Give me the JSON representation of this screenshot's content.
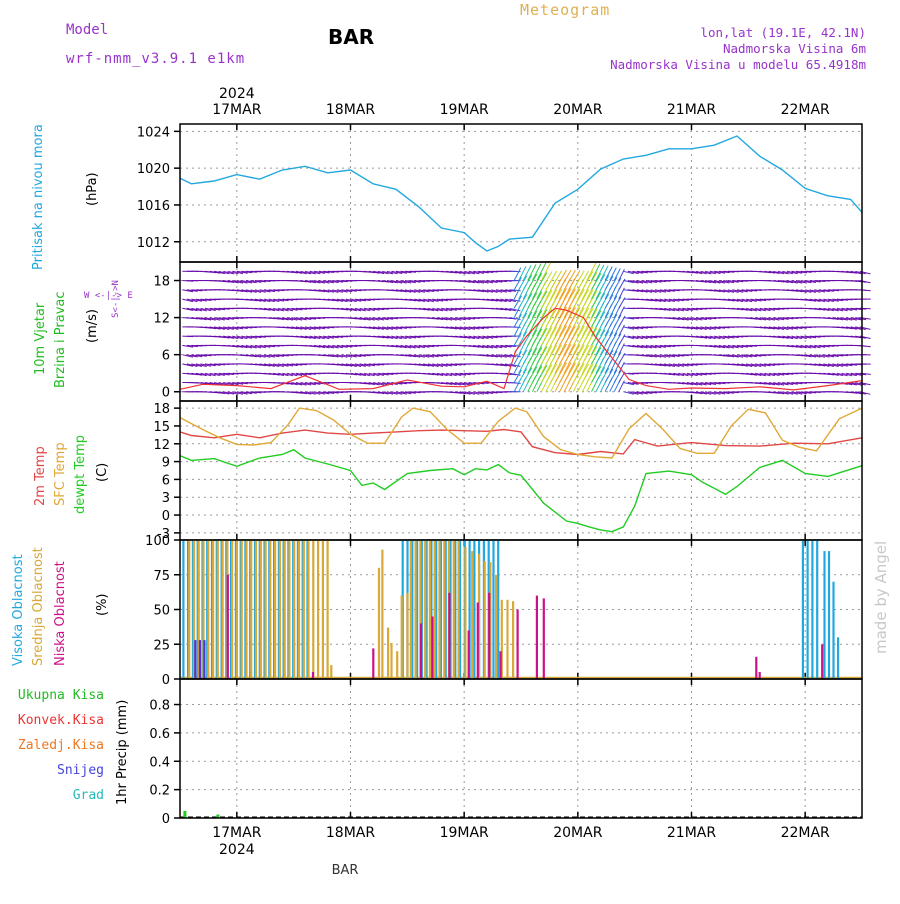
{
  "header": {
    "meteogram_title": "Meteogram",
    "model_label": "Model",
    "model_name": "wrf-nmm_v3.9.1 e1km",
    "station": "BAR",
    "location": "lon,lat (19.1E, 42.1N)",
    "elevation": "Nadmorska Visina 6m",
    "model_elevation": "Nadmorska Visina u modelu 65.4918m",
    "footer_station": "BAR",
    "watermark": "made by Angel"
  },
  "colors": {
    "pressure": "#22a8e0",
    "temp2m": "#e04848",
    "sfc_temp": "#e0a838",
    "dewpt": "#22cc22",
    "wind_label": "#22bb22",
    "high_cloud": "#22a8e0",
    "mid_cloud": "#d8a838",
    "low_cloud": "#cc1188",
    "purple": "#9933cc",
    "snow": "#4444dd",
    "hail": "#22bbbb",
    "conv": "#ee3333",
    "frz": "#ee7722"
  },
  "chart_data": [
    {
      "type": "line",
      "id": "pressure",
      "ylabel": "(hPa)",
      "side_label": "Pritisak na nivou mora",
      "yticks": [
        1012,
        1016,
        1020,
        1024
      ],
      "ylim": [
        1009.8,
        1024.8
      ],
      "day_labels": [
        "17MAR",
        "18MAR",
        "19MAR",
        "20MAR",
        "21MAR",
        "22MAR"
      ],
      "year_label": "2024",
      "x_days": [
        16.5,
        16.6,
        16.8,
        17.0,
        17.2,
        17.4,
        17.6,
        17.8,
        18.0,
        18.2,
        18.4,
        18.6,
        18.8,
        19.0,
        19.1,
        19.2,
        19.3,
        19.4,
        19.6,
        19.8,
        20.0,
        20.2,
        20.4,
        20.6,
        20.8,
        21.0,
        21.2,
        21.4,
        21.6,
        21.8,
        22.0,
        22.2,
        22.4,
        22.5
      ],
      "values": [
        1018.9,
        1018.3,
        1018.6,
        1019.3,
        1018.8,
        1019.8,
        1020.2,
        1019.5,
        1019.8,
        1018.3,
        1017.7,
        1015.8,
        1013.5,
        1013.0,
        1011.9,
        1011.0,
        1011.5,
        1012.3,
        1012.5,
        1016.2,
        1017.7,
        1019.9,
        1021.0,
        1021.4,
        1022.1,
        1022.1,
        1022.5,
        1023.5,
        1021.3,
        1019.8,
        1017.8,
        1017.0,
        1016.6,
        1015.2
      ]
    },
    {
      "type": "line",
      "id": "wind",
      "ylabel": "(m/s)",
      "side_label": "10m Vjetar Brzina i Pravac",
      "compass_label": "W <-|-> E  S <-|-> N",
      "yticks": [
        0,
        6,
        12,
        18
      ],
      "ylim": [
        -1.5,
        21
      ],
      "x_days": [
        16.5,
        16.7,
        17.0,
        17.3,
        17.6,
        17.9,
        18.2,
        18.5,
        18.8,
        19.0,
        19.2,
        19.35,
        19.45,
        19.55,
        19.7,
        19.8,
        19.9,
        20.05,
        20.15,
        20.3,
        20.45,
        20.6,
        20.8,
        21.0,
        21.3,
        21.6,
        21.9,
        22.2,
        22.5
      ],
      "values": [
        0.4,
        1.2,
        1.0,
        0.5,
        2.6,
        0.4,
        0.5,
        1.9,
        0.9,
        0.8,
        1.7,
        0.5,
        6.5,
        9.0,
        12.0,
        13.5,
        13.2,
        12.0,
        9.0,
        5.5,
        2.0,
        1.0,
        0.4,
        0.6,
        0.5,
        0.8,
        0.3,
        1.0,
        1.8
      ]
    },
    {
      "type": "line",
      "id": "temperature",
      "ylabel": "(C)",
      "side_label_2m": "2m Temp",
      "side_label_sfc": "SFC Temp",
      "side_label_dewpt": "dewpt Temp",
      "yticks": [
        -3,
        0,
        3,
        6,
        9,
        12,
        15,
        18
      ],
      "ylim": [
        -4.2,
        19.2
      ],
      "series": [
        {
          "name": "2m Temp",
          "x_days": [
            16.5,
            16.6,
            16.8,
            17.0,
            17.2,
            17.4,
            17.6,
            17.8,
            18.0,
            18.2,
            18.4,
            18.6,
            18.8,
            19.0,
            19.2,
            19.35,
            19.5,
            19.6,
            19.8,
            20.0,
            20.2,
            20.4,
            20.5,
            20.7,
            21.0,
            21.3,
            21.6,
            21.9,
            22.2,
            22.5
          ],
          "values": [
            14.0,
            13.4,
            13.0,
            13.6,
            13.0,
            13.8,
            14.3,
            13.8,
            13.6,
            13.8,
            14.0,
            14.2,
            14.3,
            14.2,
            14.1,
            14.4,
            14.0,
            11.5,
            10.5,
            10.2,
            10.7,
            10.3,
            12.7,
            11.6,
            12.2,
            11.7,
            11.6,
            12.1,
            12.0,
            13.0
          ]
        },
        {
          "name": "SFC Temp",
          "x_days": [
            16.5,
            16.7,
            16.85,
            17.0,
            17.15,
            17.3,
            17.45,
            17.55,
            17.7,
            17.85,
            18.0,
            18.15,
            18.3,
            18.45,
            18.55,
            18.7,
            18.85,
            19.0,
            19.15,
            19.3,
            19.45,
            19.55,
            19.7,
            19.85,
            20.0,
            20.15,
            20.3,
            20.45,
            20.6,
            20.75,
            20.9,
            21.05,
            21.2,
            21.35,
            21.5,
            21.65,
            21.8,
            21.95,
            22.1,
            22.3,
            22.5
          ],
          "values": [
            16.4,
            14.4,
            13.0,
            11.9,
            11.8,
            12.2,
            15.2,
            18.0,
            17.6,
            16.0,
            13.6,
            12.1,
            12.1,
            16.5,
            18.0,
            17.4,
            14.4,
            12.1,
            12.1,
            15.8,
            18.0,
            17.4,
            13.2,
            11.0,
            10.2,
            9.8,
            9.6,
            14.5,
            17.1,
            14.4,
            11.2,
            10.4,
            10.4,
            15.0,
            17.8,
            17.2,
            12.6,
            11.4,
            10.8,
            16.2,
            18.0
          ]
        },
        {
          "name": "dewpt Temp",
          "x_days": [
            16.5,
            16.6,
            16.8,
            17.0,
            17.2,
            17.4,
            17.5,
            17.6,
            17.8,
            18.0,
            18.1,
            18.2,
            18.3,
            18.5,
            18.7,
            18.9,
            19.0,
            19.1,
            19.2,
            19.3,
            19.4,
            19.5,
            19.7,
            19.9,
            20.0,
            20.1,
            20.2,
            20.3,
            20.4,
            20.5,
            20.6,
            20.8,
            21.0,
            21.1,
            21.2,
            21.3,
            21.4,
            21.6,
            21.8,
            22.0,
            22.2,
            22.5
          ],
          "values": [
            10.0,
            9.2,
            9.5,
            8.2,
            9.6,
            10.2,
            11.0,
            9.6,
            8.6,
            7.5,
            5.0,
            5.4,
            4.3,
            7.0,
            7.5,
            7.8,
            6.8,
            7.8,
            7.6,
            8.5,
            7.1,
            6.7,
            2.0,
            -1.0,
            -1.4,
            -2.0,
            -2.5,
            -2.8,
            -2.0,
            1.5,
            7.0,
            7.4,
            6.8,
            5.5,
            4.5,
            3.5,
            4.8,
            8.0,
            9.2,
            7.0,
            6.5,
            8.3
          ]
        }
      ]
    },
    {
      "type": "bar",
      "id": "cloud",
      "ylabel": "(%)",
      "side_label_high": "Visoka Oblacnost",
      "side_label_mid": "Srednja Oblacnost",
      "side_label_low": "Niska Oblacnost",
      "yticks": [
        0,
        25,
        50,
        75,
        100
      ],
      "ylim": [
        0,
        100
      ],
      "series": [
        {
          "name": "Visoka Oblacnost",
          "segments": [
            {
              "from": 16.52,
              "to": 17.62,
              "value": 100
            },
            {
              "from": 18.45,
              "to": 19.3,
              "value": 100
            },
            {
              "from": 21.97,
              "to": 22.12,
              "value": 100
            }
          ],
          "bars": [
            {
              "x": 22.16,
              "v": 92
            },
            {
              "x": 22.2,
              "v": 92
            },
            {
              "x": 22.24,
              "v": 70
            },
            {
              "x": 22.28,
              "v": 30
            }
          ]
        },
        {
          "name": "Srednja Oblacnost",
          "segments": [
            {
              "from": 16.55,
              "to": 17.78,
              "value": 100
            },
            {
              "from": 18.5,
              "to": 18.95,
              "value": 100
            }
          ],
          "bars": [
            {
              "x": 17.8,
              "v": 10
            },
            {
              "x": 18.22,
              "v": 80
            },
            {
              "x": 18.25,
              "v": 93
            },
            {
              "x": 18.3,
              "v": 37
            },
            {
              "x": 18.33,
              "v": 26
            },
            {
              "x": 18.38,
              "v": 20
            },
            {
              "x": 18.42,
              "v": 60
            },
            {
              "x": 18.47,
              "v": 62
            },
            {
              "x": 18.98,
              "v": 95
            },
            {
              "x": 19.04,
              "v": 92
            },
            {
              "x": 19.1,
              "v": 90
            },
            {
              "x": 19.15,
              "v": 85
            },
            {
              "x": 19.2,
              "v": 84
            },
            {
              "x": 19.25,
              "v": 75
            },
            {
              "x": 19.3,
              "v": 57
            },
            {
              "x": 19.35,
              "v": 57
            },
            {
              "x": 19.4,
              "v": 56
            }
          ]
        },
        {
          "name": "Niska Oblacnost",
          "bars": [
            {
              "x": 16.9,
              "v": 75
            },
            {
              "x": 17.65,
              "v": 5
            },
            {
              "x": 18.18,
              "v": 22
            },
            {
              "x": 18.6,
              "v": 40
            },
            {
              "x": 18.7,
              "v": 45
            },
            {
              "x": 18.85,
              "v": 62
            },
            {
              "x": 19.02,
              "v": 35
            },
            {
              "x": 19.1,
              "v": 55
            },
            {
              "x": 19.2,
              "v": 62
            },
            {
              "x": 19.3,
              "v": 20
            },
            {
              "x": 19.45,
              "v": 50
            },
            {
              "x": 19.62,
              "v": 60
            },
            {
              "x": 19.68,
              "v": 58
            },
            {
              "x": 21.55,
              "v": 16
            },
            {
              "x": 21.58,
              "v": 5
            },
            {
              "x": 22.13,
              "v": 25
            }
          ]
        }
      ]
    },
    {
      "type": "bar",
      "id": "precip",
      "ylabel": "1hr Precip (mm)",
      "yticks": [
        0,
        0.2,
        0.4,
        0.6,
        0.8
      ],
      "ylim": [
        0,
        0.98
      ],
      "legend": [
        "Ukupna Kisa",
        "Konvek.Kisa",
        "Zaledj.Kisa",
        "Snijeg",
        "Grad"
      ],
      "bars": [
        {
          "x": 16.53,
          "v": 0.05
        },
        {
          "x": 16.82,
          "v": 0.025
        }
      ]
    }
  ]
}
